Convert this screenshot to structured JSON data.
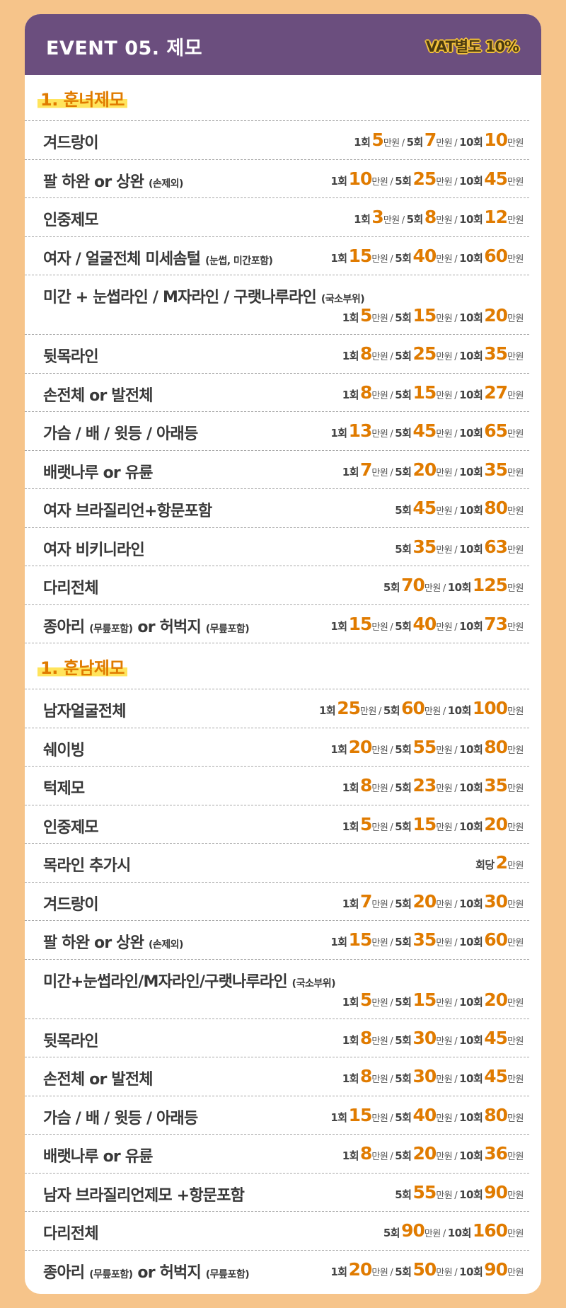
{
  "header": {
    "title": "EVENT 05. 제모",
    "vat": "VAT별도 10%"
  },
  "units": {
    "man": "만원",
    "sep": "/"
  },
  "sections": [
    {
      "title": "1. 훈녀제모",
      "rows": [
        {
          "name": "겨드랑이",
          "note": "",
          "p": [
            [
              "1회",
              "5"
            ],
            [
              "5회",
              "7"
            ],
            [
              "10회",
              "10"
            ]
          ]
        },
        {
          "name": "팔 하완 or 상완",
          "note": "(손제외)",
          "p": [
            [
              "1회",
              "10"
            ],
            [
              "5회",
              "25"
            ],
            [
              "10회",
              "45"
            ]
          ]
        },
        {
          "name": "인중제모",
          "note": "",
          "p": [
            [
              "1회",
              "3"
            ],
            [
              "5회",
              "8"
            ],
            [
              "10회",
              "12"
            ]
          ]
        },
        {
          "name": "여자 / 얼굴전체 미세솜털",
          "note": "(눈썹, 미간포함)",
          "p": [
            [
              "1회",
              "15"
            ],
            [
              "5회",
              "40"
            ],
            [
              "10회",
              "60"
            ]
          ]
        },
        {
          "name": "미간 + 눈썹라인 / M자라인 / 구랫나루라인",
          "note": "(국소부위)",
          "tall": true,
          "p": [
            [
              "1회",
              "5"
            ],
            [
              "5회",
              "15"
            ],
            [
              "10회",
              "20"
            ]
          ]
        },
        {
          "name": "뒷목라인",
          "note": "",
          "p": [
            [
              "1회",
              "8"
            ],
            [
              "5회",
              "25"
            ],
            [
              "10회",
              "35"
            ]
          ]
        },
        {
          "name": "손전체 or 발전체",
          "note": "",
          "p": [
            [
              "1회",
              "8"
            ],
            [
              "5회",
              "15"
            ],
            [
              "10회",
              "27"
            ]
          ]
        },
        {
          "name": "가슴 / 배 / 윗등 / 아래등",
          "note": "",
          "p": [
            [
              "1회",
              "13"
            ],
            [
              "5회",
              "45"
            ],
            [
              "10회",
              "65"
            ]
          ]
        },
        {
          "name": "배랫나루 or 유륜",
          "note": "",
          "p": [
            [
              "1회",
              "7"
            ],
            [
              "5회",
              "20"
            ],
            [
              "10회",
              "35"
            ]
          ]
        },
        {
          "name": "여자 브라질리언+항문포함",
          "note": "",
          "p": [
            [
              "5회",
              "45"
            ],
            [
              "10회",
              "80"
            ]
          ]
        },
        {
          "name": "여자 비키니라인",
          "note": "",
          "p": [
            [
              "5회",
              "35"
            ],
            [
              "10회",
              "63"
            ]
          ]
        },
        {
          "name": "다리전체",
          "note": "",
          "p": [
            [
              "5회",
              "70"
            ],
            [
              "10회",
              "125"
            ]
          ]
        },
        {
          "name": "종아리",
          "note": "(무릎포함)",
          "name2": "or 허벅지",
          "note2": "(무릎포함)",
          "p": [
            [
              "1회",
              "15"
            ],
            [
              "5회",
              "40"
            ],
            [
              "10회",
              "73"
            ]
          ]
        }
      ]
    },
    {
      "title": "1. 훈남제모",
      "rows": [
        {
          "name": "남자얼굴전체",
          "note": "",
          "p": [
            [
              "1회",
              "25"
            ],
            [
              "5회",
              "60"
            ],
            [
              "10회",
              "100"
            ]
          ]
        },
        {
          "name": "쉐이빙",
          "note": "",
          "p": [
            [
              "1회",
              "20"
            ],
            [
              "5회",
              "55"
            ],
            [
              "10회",
              "80"
            ]
          ]
        },
        {
          "name": "턱제모",
          "note": "",
          "p": [
            [
              "1회",
              "8"
            ],
            [
              "5회",
              "23"
            ],
            [
              "10회",
              "35"
            ]
          ]
        },
        {
          "name": "인중제모",
          "note": "",
          "p": [
            [
              "1회",
              "5"
            ],
            [
              "5회",
              "15"
            ],
            [
              "10회",
              "20"
            ]
          ]
        },
        {
          "name": "목라인 추가시",
          "note": "",
          "p": [
            [
              "회당",
              "2"
            ]
          ]
        },
        {
          "name": "겨드랑이",
          "note": "",
          "p": [
            [
              "1회",
              "7"
            ],
            [
              "5회",
              "20"
            ],
            [
              "10회",
              "30"
            ]
          ]
        },
        {
          "name": "팔 하완 or 상완",
          "note": "(손제외)",
          "p": [
            [
              "1회",
              "15"
            ],
            [
              "5회",
              "35"
            ],
            [
              "10회",
              "60"
            ]
          ]
        },
        {
          "name": "미간+눈썹라인/M자라인/구랫나루라인",
          "note": "(국소부위)",
          "tall": true,
          "p": [
            [
              "1회",
              "5"
            ],
            [
              "5회",
              "15"
            ],
            [
              "10회",
              "20"
            ]
          ]
        },
        {
          "name": "뒷목라인",
          "note": "",
          "p": [
            [
              "1회",
              "8"
            ],
            [
              "5회",
              "30"
            ],
            [
              "10회",
              "45"
            ]
          ]
        },
        {
          "name": "손전체 or 발전체",
          "note": "",
          "p": [
            [
              "1회",
              "8"
            ],
            [
              "5회",
              "30"
            ],
            [
              "10회",
              "45"
            ]
          ]
        },
        {
          "name": "가슴 / 배 / 윗등 / 아래등",
          "note": "",
          "p": [
            [
              "1회",
              "15"
            ],
            [
              "5회",
              "40"
            ],
            [
              "10회",
              "80"
            ]
          ]
        },
        {
          "name": "배랫나루 or 유륜",
          "note": "",
          "p": [
            [
              "1회",
              "8"
            ],
            [
              "5회",
              "20"
            ],
            [
              "10회",
              "36"
            ]
          ]
        },
        {
          "name": "남자 브라질리언제모 +항문포함",
          "note": "",
          "p": [
            [
              "5회",
              "55"
            ],
            [
              "10회",
              "90"
            ]
          ]
        },
        {
          "name": "다리전체",
          "note": "",
          "p": [
            [
              "5회",
              "90"
            ],
            [
              "10회",
              "160"
            ]
          ]
        },
        {
          "name": "종아리",
          "note": "(무릎포함)",
          "name2": "or 허벅지",
          "note2": "(무릎포함)",
          "p": [
            [
              "1회",
              "20"
            ],
            [
              "5회",
              "50"
            ],
            [
              "10회",
              "90"
            ]
          ]
        }
      ]
    }
  ]
}
